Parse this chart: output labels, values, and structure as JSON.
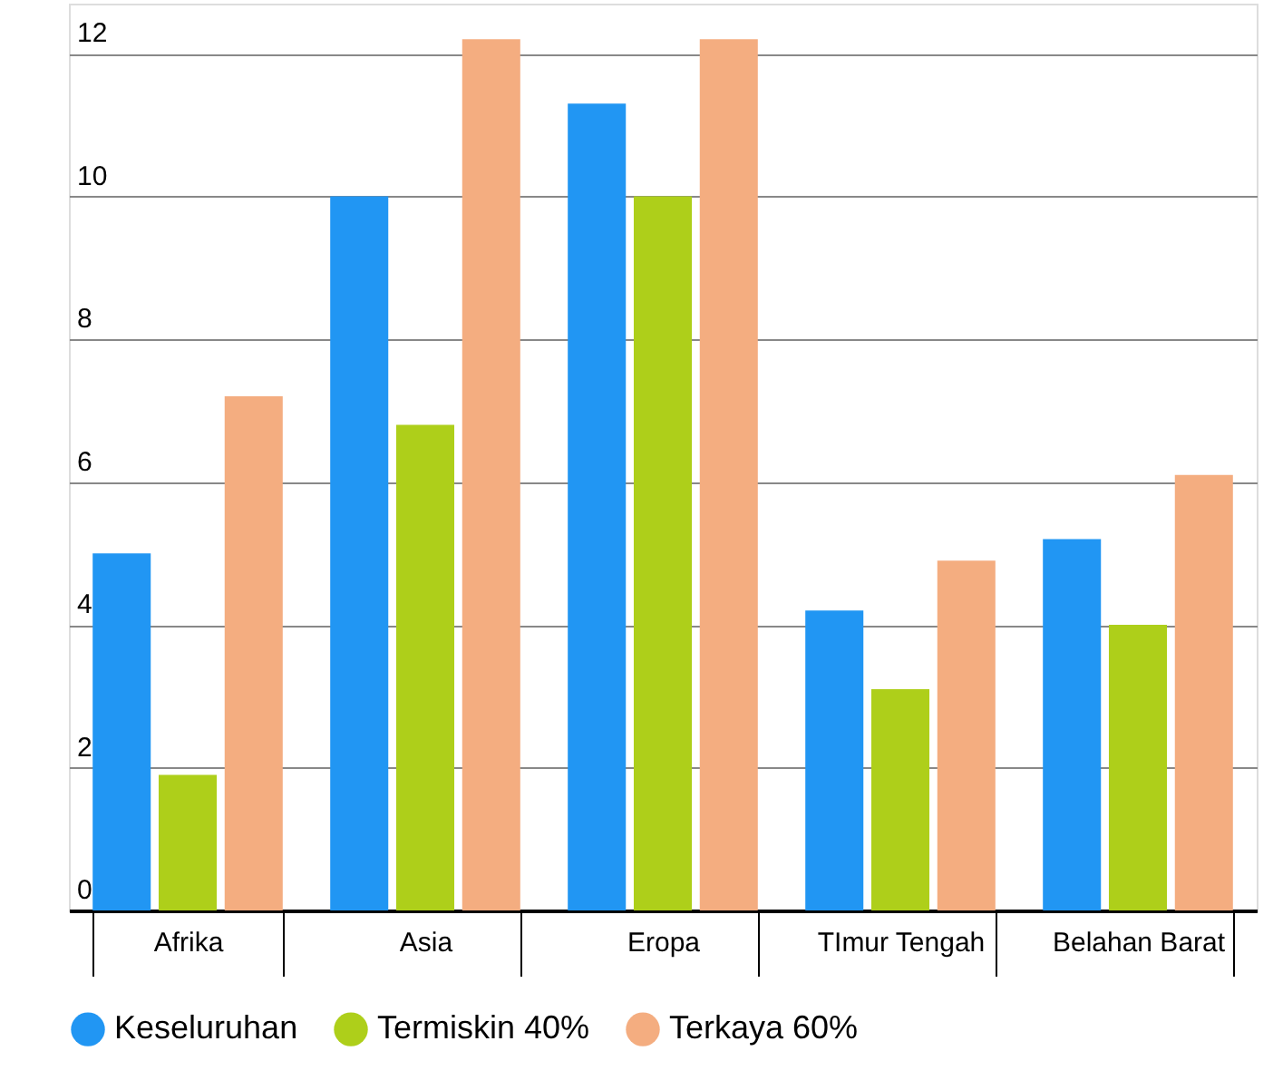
{
  "chart_data": {
    "type": "bar",
    "categories": [
      "Afrika",
      "Asia",
      "Eropa",
      "TImur Tengah",
      "Belahan Barat"
    ],
    "series": [
      {
        "name": "Keseluruhan",
        "color": "#2196f3",
        "values": [
          5.0,
          10.0,
          11.3,
          4.2,
          5.2
        ]
      },
      {
        "name": "Termiskin 40%",
        "color": "#aecf1a",
        "values": [
          1.9,
          6.8,
          10.0,
          3.1,
          4.0
        ]
      },
      {
        "name": "Terkaya 60%",
        "color": "#f4ad80",
        "values": [
          7.2,
          12.2,
          12.2,
          4.9,
          6.1
        ]
      }
    ],
    "ylim": [
      0,
      12.7
    ],
    "yticks": [
      0,
      2,
      4,
      6,
      8,
      10,
      12
    ],
    "grid": "y",
    "legend": "bottom"
  }
}
